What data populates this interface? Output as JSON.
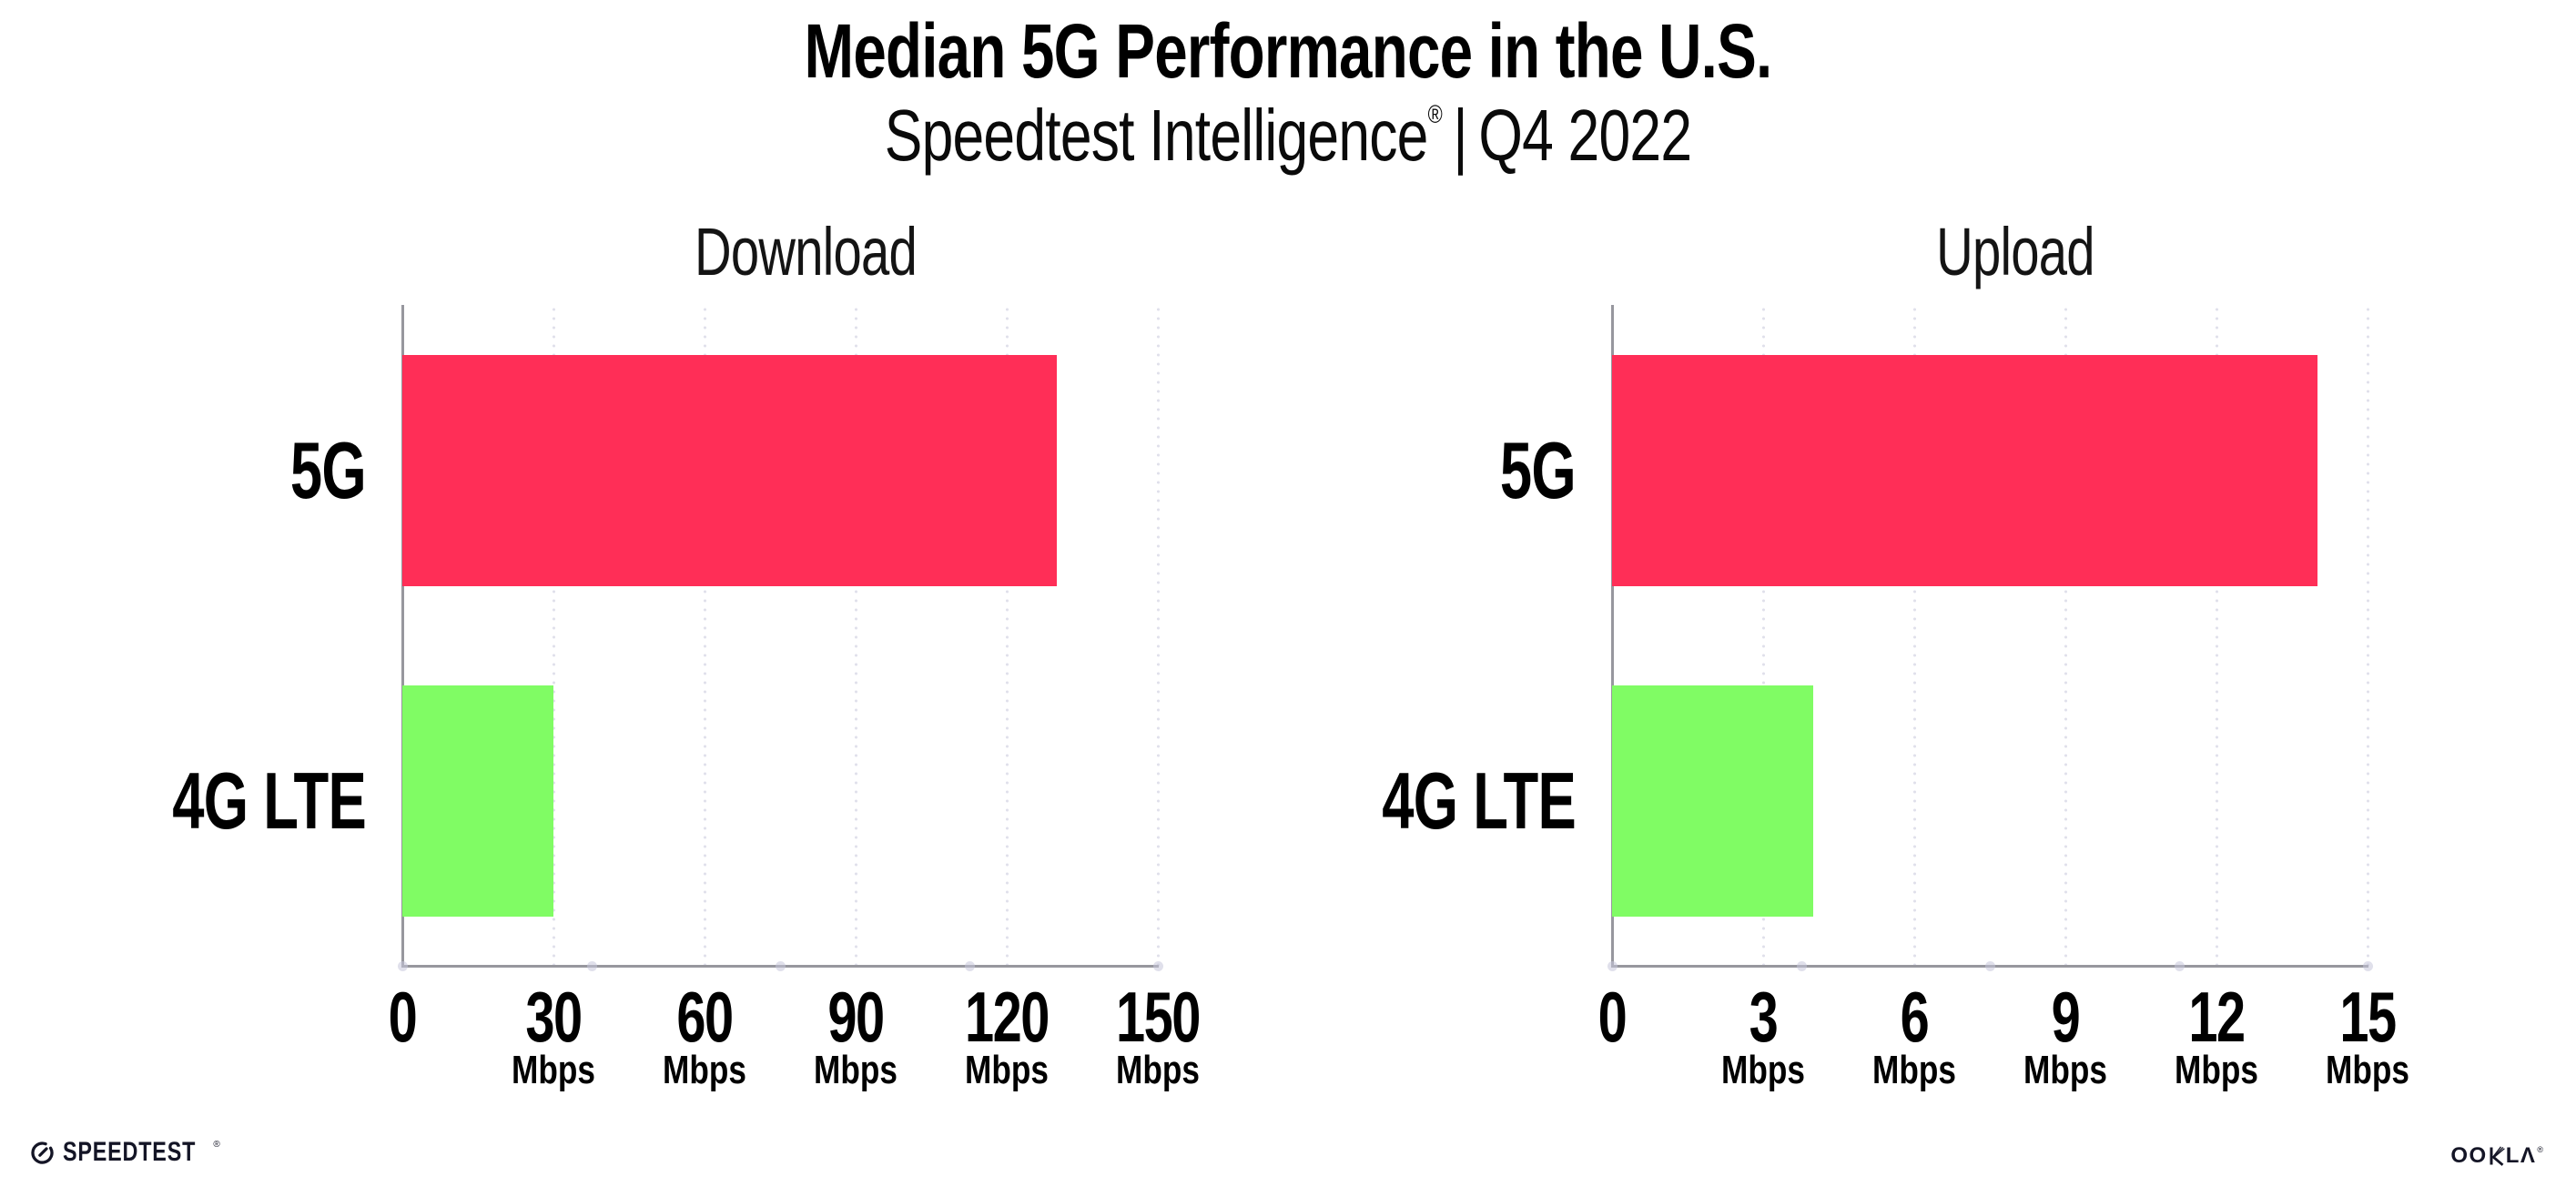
{
  "header": {
    "title": "Median 5G Performance in the U.S.",
    "subtitle_brand": "Speedtest Intelligence",
    "subtitle_reg": "®",
    "subtitle_separator": "|",
    "subtitle_period": "Q4 2022"
  },
  "chart_data": [
    {
      "type": "bar",
      "orientation": "horizontal",
      "title": "Download",
      "categories": [
        "5G",
        "4G LTE"
      ],
      "values": [
        130,
        30
      ],
      "unit": "Mbps",
      "xlabel": "",
      "ylabel": "",
      "xlim": [
        0,
        150
      ],
      "ticks": [
        0,
        30,
        60,
        90,
        120,
        150
      ],
      "bar_colors": [
        "#ff2e57",
        "#80fc64"
      ],
      "grid": "dotted-vertical",
      "legend": "none",
      "data_labels": "none"
    },
    {
      "type": "bar",
      "orientation": "horizontal",
      "title": "Upload",
      "categories": [
        "5G",
        "4G LTE"
      ],
      "values": [
        14,
        4
      ],
      "unit": "Mbps",
      "xlabel": "",
      "ylabel": "",
      "xlim": [
        0,
        15
      ],
      "ticks": [
        0,
        3,
        6,
        9,
        12,
        15
      ],
      "bar_colors": [
        "#ff2e57",
        "#80fc64"
      ],
      "grid": "dotted-vertical",
      "legend": "none",
      "data_labels": "none"
    }
  ],
  "footer": {
    "speedtest_logo_text": "SPEEDTEST",
    "speedtest_reg": "®",
    "ookla_logo_left": "OO",
    "ookla_logo_right": "LΛ",
    "ookla_reg": "®"
  },
  "colors": {
    "bar_5g": "#ff2e57",
    "bar_4g_lte": "#80fc64",
    "gridline": "#e0e0eb",
    "axis": "#97979e",
    "axis_dot": "#c7c7da",
    "title_text": "#000000",
    "chart_title_text": "#141414",
    "background": "#ffffff",
    "logo_text": "#141526"
  }
}
